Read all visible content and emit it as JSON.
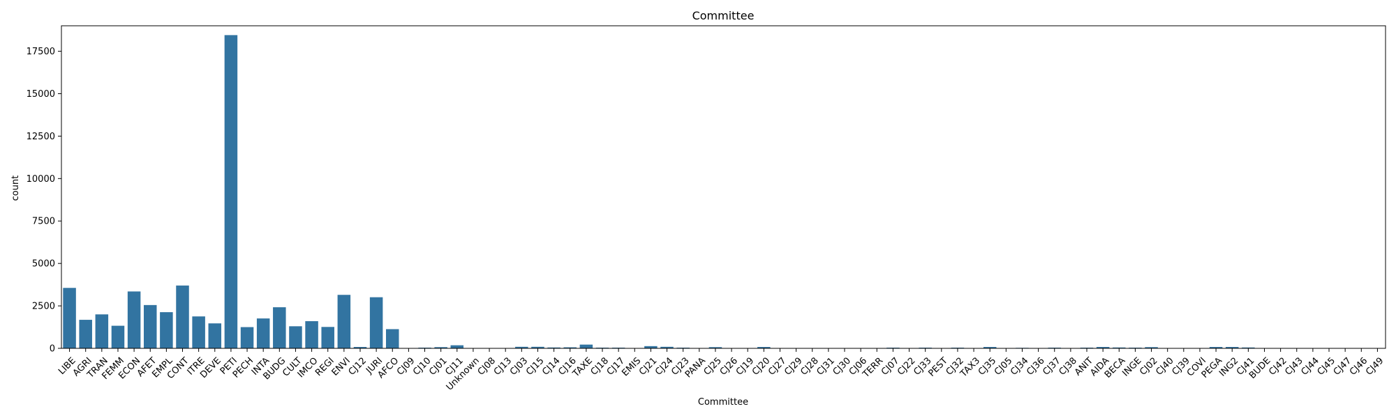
{
  "chart_data": {
    "type": "bar",
    "title": "Committee",
    "xlabel": "Committee",
    "ylabel": "count",
    "ylim": [
      0,
      19000
    ],
    "yticks": [
      0,
      2500,
      5000,
      7500,
      10000,
      12500,
      15000,
      17500
    ],
    "grid": false,
    "bar_color": "#3274a1",
    "categories": [
      "LIBE",
      "AGRI",
      "TRAN",
      "FEMM",
      "ECON",
      "AFET",
      "EMPL",
      "CONT",
      "ITRE",
      "DEVE",
      "PETI",
      "PECH",
      "INTA",
      "BUDG",
      "CULT",
      "IMCO",
      "REGI",
      "ENVI",
      "CJ12",
      "JURI",
      "AFCO",
      "CJ09",
      "CJ10",
      "CJ01",
      "CJ11",
      "Unknown",
      "CJ08",
      "CJ13",
      "CJ03",
      "CJ15",
      "CJ14",
      "CJ16",
      "TAXE",
      "CJ18",
      "CJ17",
      "EMIS",
      "CJ21",
      "CJ24",
      "CJ23",
      "PANA",
      "CJ25",
      "CJ26",
      "CJ19",
      "CJ20",
      "CJ27",
      "CJ29",
      "CJ28",
      "CJ31",
      "CJ30",
      "CJ06",
      "TERR",
      "CJ07",
      "CJ22",
      "CJ33",
      "PEST",
      "CJ32",
      "TAX3",
      "CJ35",
      "CJ05",
      "CJ34",
      "CJ36",
      "CJ37",
      "CJ38",
      "ANIT",
      "AIDA",
      "BECA",
      "INGE",
      "CJ02",
      "CJ40",
      "CJ39",
      "COVI",
      "PEGA",
      "ING2",
      "CJ41",
      "BUDE",
      "CJ42",
      "CJ43",
      "CJ44",
      "CJ45",
      "CJ47",
      "CJ46",
      "CJ49"
    ],
    "values": [
      3560,
      1680,
      2000,
      1330,
      3350,
      2550,
      2130,
      3700,
      1880,
      1470,
      18450,
      1250,
      1760,
      2420,
      1300,
      1600,
      1260,
      3150,
      80,
      3010,
      1130,
      10,
      40,
      70,
      180,
      10,
      10,
      20,
      90,
      90,
      50,
      60,
      220,
      40,
      40,
      20,
      130,
      90,
      40,
      10,
      70,
      10,
      20,
      80,
      10,
      10,
      10,
      10,
      10,
      10,
      10,
      40,
      20,
      40,
      10,
      40,
      10,
      80,
      10,
      30,
      10,
      40,
      10,
      40,
      80,
      50,
      40,
      70,
      10,
      10,
      10,
      80,
      80,
      50,
      10,
      10,
      10,
      10,
      10,
      10,
      10,
      10
    ]
  }
}
